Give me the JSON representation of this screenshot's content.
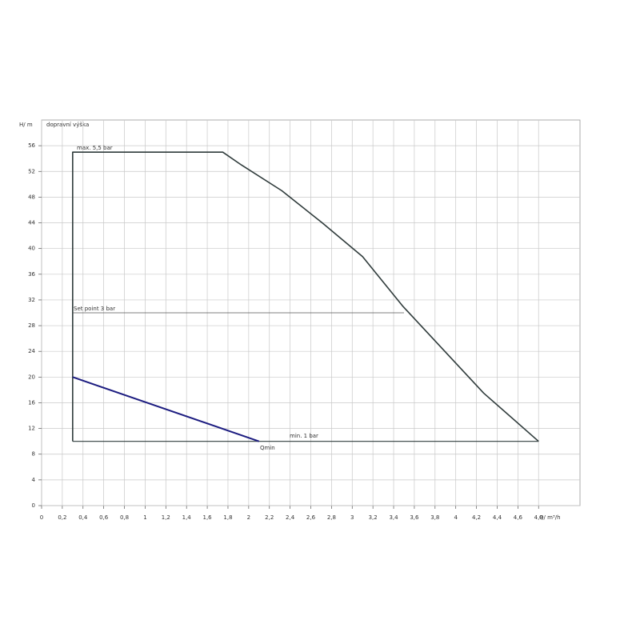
{
  "chart_data": {
    "type": "line",
    "y_label": "H/ m",
    "y_sublabel": "dopravní výška",
    "x_label": "Q/ m³/h",
    "annotations": [
      "max. 5,5 bar",
      "Set point 3 bar",
      "min. 1 bar",
      "Qmin"
    ],
    "xlim": [
      0,
      5.2
    ],
    "ylim": [
      0,
      60
    ],
    "xticks": [
      0,
      {
        "value": 0.2,
        "label": "0,2"
      },
      {
        "value": 0.4,
        "label": "0,4"
      },
      {
        "value": 0.6,
        "label": "0,6"
      },
      {
        "value": 0.8,
        "label": "0,8"
      },
      1,
      {
        "value": 1.2,
        "label": "1,2"
      },
      {
        "value": 1.4,
        "label": "1,4"
      },
      {
        "value": 1.6,
        "label": "1,6"
      },
      {
        "value": 1.8,
        "label": "1,8"
      },
      2,
      {
        "value": 2.2,
        "label": "2,2"
      },
      {
        "value": 2.4,
        "label": "2,4"
      },
      {
        "value": 2.6,
        "label": "2,6"
      },
      {
        "value": 2.8,
        "label": "2,8"
      },
      3,
      {
        "value": 3.2,
        "label": "3,2"
      },
      {
        "value": 3.4,
        "label": "3,4"
      },
      {
        "value": 3.6,
        "label": "3,6"
      },
      {
        "value": 3.8,
        "label": "3,8"
      },
      4,
      {
        "value": 4.2,
        "label": "4,2"
      },
      {
        "value": 4.4,
        "label": "4,4"
      },
      {
        "value": 4.6,
        "label": "4,6"
      },
      {
        "value": 4.8,
        "label": "4,8"
      }
    ],
    "yticks": [
      0,
      4,
      8,
      12,
      16,
      20,
      24,
      28,
      32,
      36,
      40,
      44,
      48,
      52,
      56
    ],
    "grid": true,
    "series": [
      {
        "color": "#2f3b3b",
        "line_width": 1.6,
        "x": [
          0.3,
          0.3,
          1.75,
          1.93,
          2.32,
          2.71,
          3.1,
          3.49,
          3.88,
          4.27,
          4.8
        ],
        "values": [
          10,
          55,
          55,
          53,
          49,
          44,
          38.75,
          31,
          24.25,
          17.5,
          10
        ]
      },
      {
        "color": "#2f3b3b",
        "line_width": 1.2,
        "x": [
          0.3,
          4.8
        ],
        "values": [
          10,
          10
        ]
      },
      {
        "color": "#1c1c80",
        "line_width": 2,
        "x": [
          0.3,
          2.1
        ],
        "values": [
          20,
          10
        ]
      },
      {
        "color": "#555555",
        "line_width": 0.8,
        "x": [
          0.3,
          3.5
        ],
        "values": [
          30,
          30
        ]
      }
    ]
  }
}
